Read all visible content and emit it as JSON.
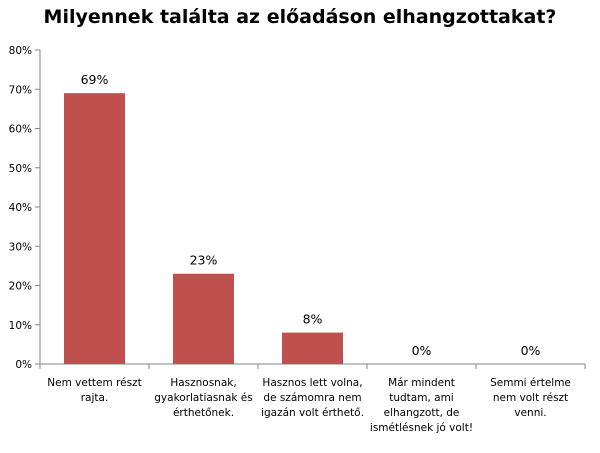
{
  "chart_data": {
    "type": "bar",
    "title": "Milyennek találta az előadáson elhangzottakat?",
    "categories": [
      [
        "Nem vettem részt",
        "rajta."
      ],
      [
        "Hasznosnak,",
        "gyakorlatiasnak és",
        "érthetőnek."
      ],
      [
        "Hasznos lett volna,",
        "de számomra  nem",
        "igazán volt érthető."
      ],
      [
        "Már mindent",
        "tudtam, ami",
        "elhangzott, de",
        "ismétlésnek jó volt!"
      ],
      [
        "Semmi értelme",
        "nem volt részt",
        "venni."
      ]
    ],
    "values": [
      69,
      23,
      8,
      0,
      0
    ],
    "data_labels": [
      "69%",
      "23%",
      "8%",
      "0%",
      "0%"
    ],
    "ylim": [
      0,
      80
    ],
    "yticks": [
      "0%",
      "10%",
      "20%",
      "30%",
      "40%",
      "50%",
      "60%",
      "70%",
      "80%"
    ],
    "xlabel": "",
    "ylabel": "",
    "grid": false,
    "legend": "none",
    "bar_color": "#C0504D"
  }
}
